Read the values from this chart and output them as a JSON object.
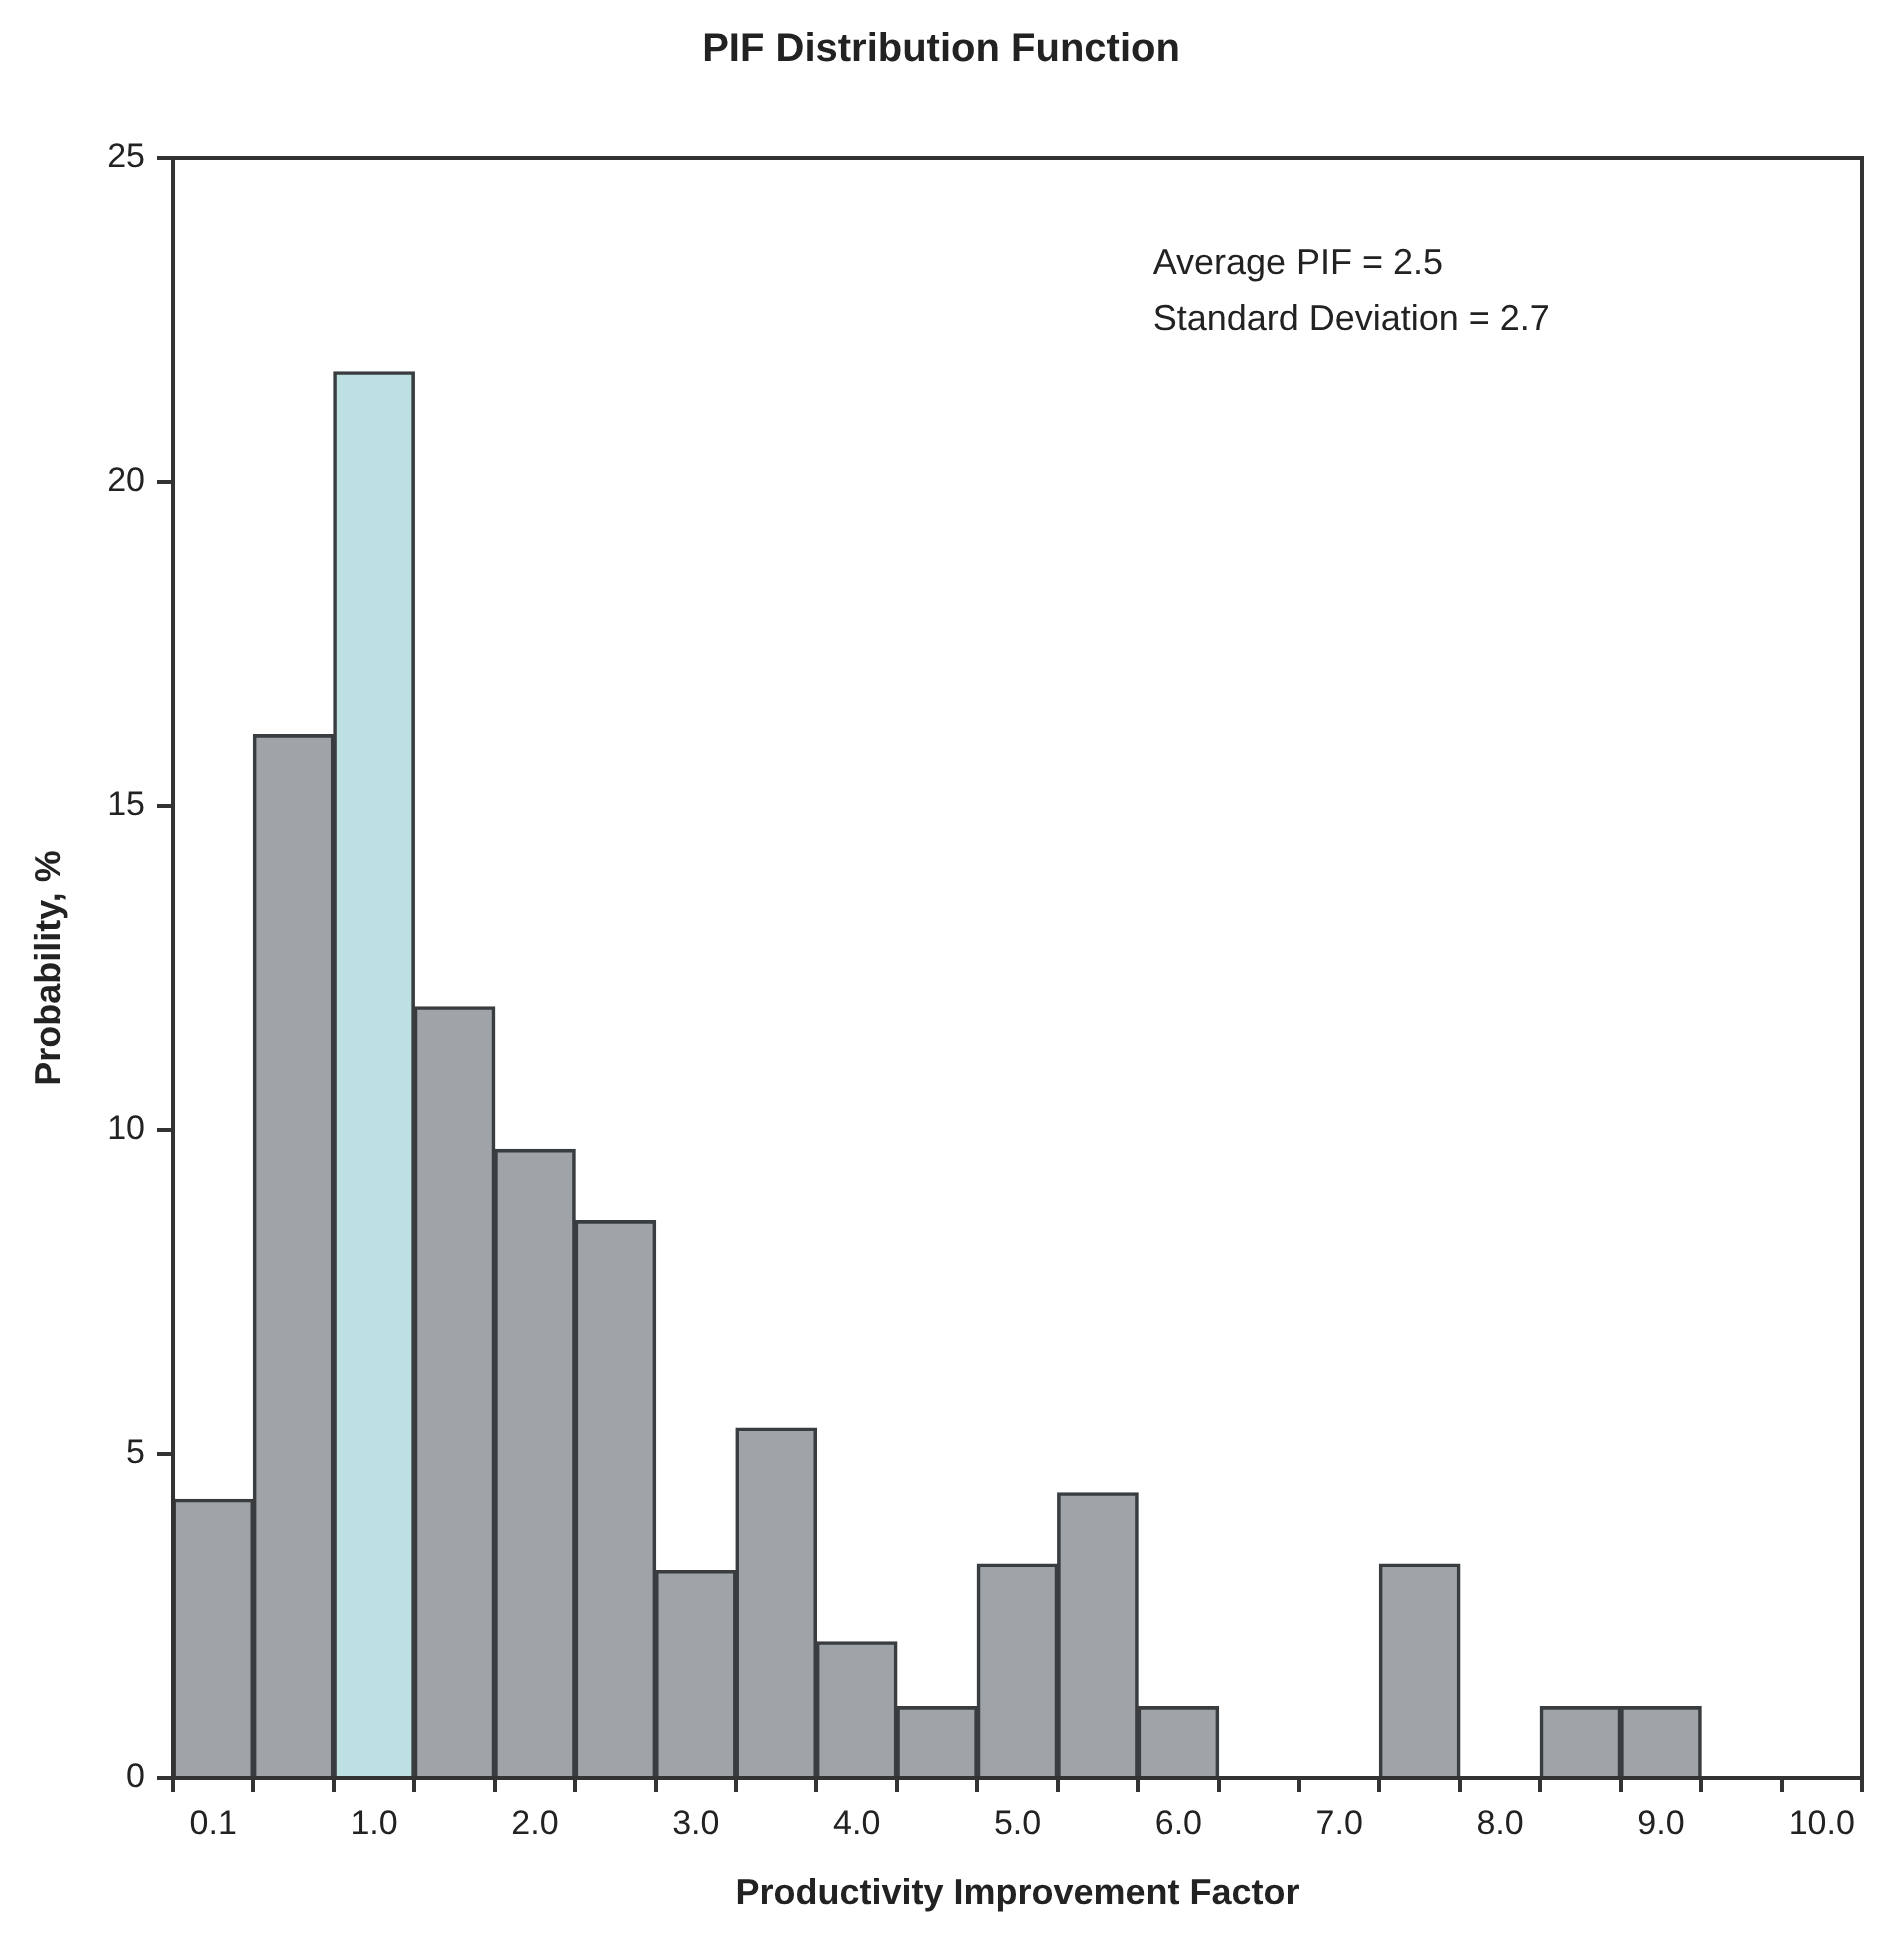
{
  "chart_data": {
    "type": "bar",
    "title": "PIF Distribution Function",
    "xlabel": "Productivity Improvement Factor",
    "ylabel": "Probability, %",
    "categories": [
      "0.1",
      null,
      "1.0",
      null,
      "2.0",
      null,
      "3.0",
      null,
      "4.0",
      null,
      "5.0",
      null,
      "6.0",
      null,
      "7.0",
      null,
      "8.0",
      null,
      "9.0",
      null,
      "10.0"
    ],
    "values": [
      4.3,
      16.1,
      21.7,
      11.9,
      9.7,
      8.6,
      3.2,
      5.4,
      2.1,
      1.1,
      3.3,
      4.4,
      1.1,
      0,
      0,
      3.3,
      0,
      1.1,
      1.1,
      0,
      0
    ],
    "colors": [
      "#9ea4a8",
      "#9ea4a8",
      "#bde0e3",
      "#9ea4a8",
      "#9ea4a8",
      "#9ea4a8",
      "#9ea4a8",
      "#9ea4a8",
      "#9ea4a8",
      "#9ea4a8",
      "#9ea4a8",
      "#9ea4a8",
      "#9ea4a8",
      "#9ea4a8",
      "#9ea4a8",
      "#9ea4a8",
      "#9ea4a8",
      "#9ea4a8",
      "#9ea4a8",
      "#9ea4a8",
      "#9ea4a8"
    ],
    "ylim": [
      0,
      25
    ],
    "yticks": [
      0,
      5,
      10,
      15,
      20,
      25
    ],
    "grid": false,
    "legend": false,
    "annotations": [
      "Average PIF = 2.5",
      "Standard Deviation = 2.7"
    ]
  }
}
